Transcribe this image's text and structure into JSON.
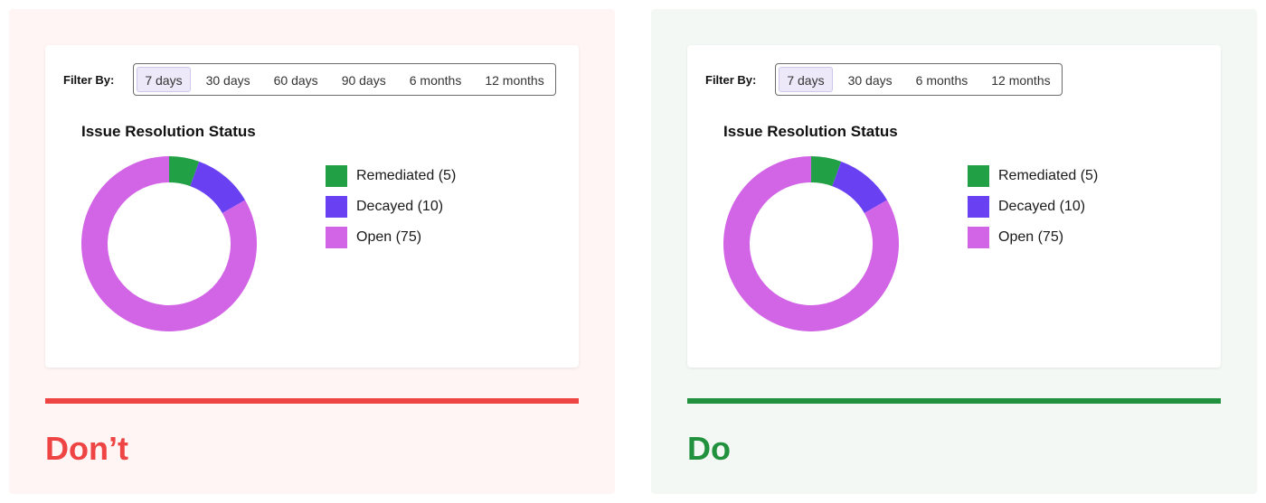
{
  "colors": {
    "remediated": "#22a045",
    "decayed": "#6941f2",
    "open": "#d264e6",
    "dont": "#ee4444",
    "do": "#22913e"
  },
  "panels": [
    {
      "verdict": "Don’t",
      "filter": {
        "label": "Filter By:",
        "options": [
          "7 days",
          "30 days",
          "60 days",
          "90 days",
          "6 months",
          "12 months"
        ],
        "selected": "7 days"
      },
      "chart_data": {
        "type": "pie",
        "title": "Issue Resolution Status",
        "categories": [
          "Remediated",
          "Decayed",
          "Open"
        ],
        "values": [
          5,
          10,
          75
        ],
        "legend": [
          "Remediated (5)",
          "Decayed (10)",
          "Open (75)"
        ],
        "legend_position": "right",
        "style": "donut"
      }
    },
    {
      "verdict": "Do",
      "filter": {
        "label": "Filter By:",
        "options": [
          "7 days",
          "30 days",
          "6 months",
          "12 months"
        ],
        "selected": "7 days"
      },
      "chart_data": {
        "type": "pie",
        "title": "Issue Resolution Status",
        "categories": [
          "Remediated",
          "Decayed",
          "Open"
        ],
        "values": [
          5,
          10,
          75
        ],
        "legend": [
          "Remediated (5)",
          "Decayed (10)",
          "Open (75)"
        ],
        "legend_position": "right",
        "style": "donut"
      }
    }
  ]
}
